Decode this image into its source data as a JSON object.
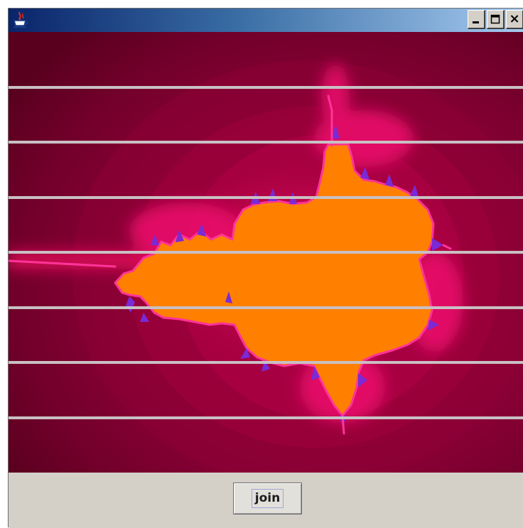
{
  "window": {
    "title": "",
    "app_icon": "java-cup-icon",
    "controls": {
      "minimize_icon": "minimize-icon",
      "maximize_icon": "maximize-icon",
      "close_label": "×"
    }
  },
  "canvas": {
    "content": "mandelbrot-fractal",
    "band_count": 8,
    "colors": {
      "background_dark": "#5e0020",
      "background_mid": "#8a0033",
      "glow": "#e0105a",
      "edge": "#ff3399",
      "edge_accent": "#7a2ad6",
      "interior": "#ff8000",
      "separator": "#c9c0c3"
    }
  },
  "buttons": {
    "join_label": "join"
  }
}
